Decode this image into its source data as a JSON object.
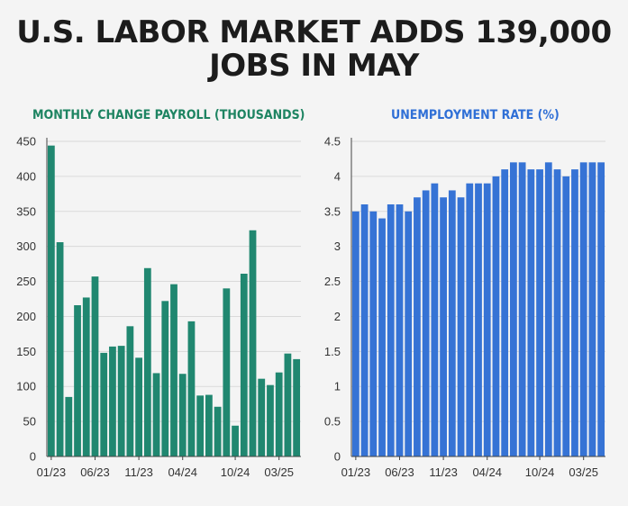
{
  "headline": {
    "line1": "U.S. LABOR MARKET ADDS 139,000",
    "line2": "JOBS IN MAY"
  },
  "colors": {
    "payroll": "#208770",
    "unemployment": "#3673d5",
    "grid": "#d9d9d9",
    "axis": "#444444",
    "tick_text": "#333333"
  },
  "chart_data": [
    {
      "type": "bar",
      "title": "MONTHLY CHANGE PAYROLL (THOUSANDS)",
      "xlabel": "",
      "ylabel": "",
      "ylim": [
        0,
        450
      ],
      "yticks": [
        0,
        50,
        100,
        150,
        200,
        250,
        300,
        350,
        400,
        450
      ],
      "grid": true,
      "categories": [
        "01/23",
        "02/23",
        "03/23",
        "04/23",
        "05/23",
        "06/23",
        "07/23",
        "08/23",
        "09/23",
        "10/23",
        "11/23",
        "12/23",
        "01/24",
        "02/24",
        "03/24",
        "04/24",
        "05/24",
        "06/24",
        "07/24",
        "08/24",
        "09/24",
        "10/24",
        "11/24",
        "12/24",
        "01/25",
        "02/25",
        "03/25",
        "04/25",
        "05/25"
      ],
      "xtick_labels": [
        "01/23",
        "06/23",
        "11/23",
        "04/24",
        "10/24",
        "03/25"
      ],
      "values": [
        444,
        306,
        85,
        216,
        227,
        257,
        148,
        157,
        158,
        186,
        141,
        269,
        119,
        222,
        246,
        118,
        193,
        87,
        88,
        71,
        240,
        44,
        261,
        323,
        111,
        102,
        120,
        147,
        139
      ]
    },
    {
      "type": "bar",
      "title": "UNEMPLOYMENT RATE (%)",
      "xlabel": "",
      "ylabel": "",
      "ylim": [
        0,
        4.5
      ],
      "yticks": [
        0,
        0.5,
        1,
        1.5,
        2,
        2.5,
        3,
        3.5,
        4,
        4.5
      ],
      "grid": true,
      "categories": [
        "01/23",
        "02/23",
        "03/23",
        "04/23",
        "05/23",
        "06/23",
        "07/23",
        "08/23",
        "09/23",
        "10/23",
        "11/23",
        "12/23",
        "01/24",
        "02/24",
        "03/24",
        "04/24",
        "05/24",
        "06/24",
        "07/24",
        "08/24",
        "09/24",
        "10/24",
        "11/24",
        "12/24",
        "01/25",
        "02/25",
        "03/25",
        "04/25",
        "05/25"
      ],
      "xtick_labels": [
        "01/23",
        "06/23",
        "11/23",
        "04/24",
        "10/24",
        "03/25"
      ],
      "values": [
        3.5,
        3.6,
        3.5,
        3.4,
        3.6,
        3.6,
        3.5,
        3.7,
        3.8,
        3.9,
        3.7,
        3.8,
        3.7,
        3.9,
        3.9,
        3.9,
        4.0,
        4.1,
        4.2,
        4.2,
        4.1,
        4.1,
        4.2,
        4.1,
        4.0,
        4.1,
        4.2,
        4.2,
        4.2
      ]
    }
  ]
}
